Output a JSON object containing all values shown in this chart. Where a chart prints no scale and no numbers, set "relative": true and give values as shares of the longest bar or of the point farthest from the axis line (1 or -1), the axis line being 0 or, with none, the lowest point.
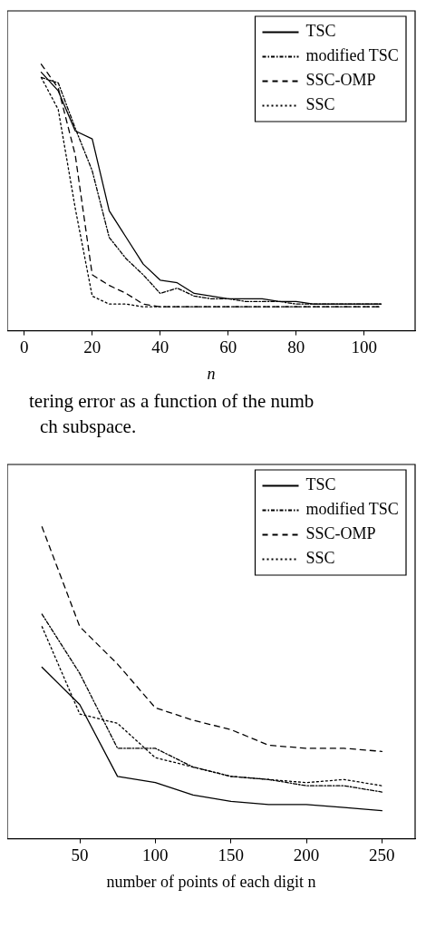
{
  "chart_data": [
    {
      "type": "line",
      "xlabel": "n",
      "x": [
        5,
        10,
        15,
        20,
        25,
        30,
        35,
        40,
        45,
        50,
        55,
        60,
        65,
        70,
        75,
        80,
        85,
        90,
        95,
        100,
        105
      ],
      "xlim": [
        -5,
        115
      ],
      "xticks": [
        0,
        20,
        40,
        60,
        80,
        100
      ],
      "relative": true,
      "legend": "top right",
      "series": [
        {
          "name": "TSC",
          "color": "#000000",
          "line_style": "solid",
          "values": [
            0.97,
            0.9,
            0.75,
            0.72,
            0.45,
            0.35,
            0.25,
            0.19,
            0.18,
            0.14,
            0.13,
            0.12,
            0.12,
            0.12,
            0.11,
            0.11,
            0.1,
            0.1,
            0.1,
            0.1,
            0.1
          ]
        },
        {
          "name": "modified TSC",
          "color": "#000000",
          "line_style": "dashdot",
          "values": [
            0.95,
            0.93,
            0.76,
            0.6,
            0.35,
            0.27,
            0.21,
            0.14,
            0.16,
            0.13,
            0.12,
            0.12,
            0.11,
            0.11,
            0.11,
            0.1,
            0.1,
            0.1,
            0.1,
            0.1,
            0.1
          ]
        },
        {
          "name": "SSC-OMP",
          "color": "#000000",
          "line_style": "dashed",
          "values": [
            1,
            0.91,
            0.66,
            0.21,
            0.17,
            0.14,
            0.1,
            0.09,
            0.09,
            0.09,
            0.09,
            0.09,
            0.09,
            0.09,
            0.09,
            0.09,
            0.09,
            0.09,
            0.09,
            0.09,
            0.09
          ]
        },
        {
          "name": "SSC",
          "color": "#000000",
          "line_style": "dotted",
          "values": [
            0.95,
            0.83,
            0.46,
            0.13,
            0.1,
            0.1,
            0.09,
            0.09,
            0.09,
            0.09,
            0.09,
            0.09,
            0.09,
            0.09,
            0.09,
            0.09,
            0.09,
            0.09,
            0.09,
            0.09,
            0.09
          ]
        }
      ],
      "annotations": [
        "tering error as a function of the numb",
        "ch subspace."
      ]
    },
    {
      "type": "line",
      "xlabel": "number of points of each digit n",
      "x": [
        25,
        50,
        75,
        100,
        125,
        150,
        175,
        200,
        225,
        250
      ],
      "xlim": [
        2,
        272
      ],
      "xticks": [
        50,
        100,
        150,
        200,
        250
      ],
      "relative": true,
      "legend": "top right",
      "series": [
        {
          "name": "TSC",
          "color": "#000000",
          "line_style": "solid",
          "values": [
            0.55,
            0.43,
            0.2,
            0.18,
            0.14,
            0.12,
            0.11,
            0.11,
            0.1,
            0.09
          ]
        },
        {
          "name": "modified TSC",
          "color": "#000000",
          "line_style": "dashdot",
          "values": [
            0.72,
            0.53,
            0.29,
            0.29,
            0.23,
            0.2,
            0.19,
            0.17,
            0.17,
            0.15
          ]
        },
        {
          "name": "SSC-OMP",
          "color": "#000000",
          "line_style": "dashed",
          "values": [
            1,
            0.68,
            0.56,
            0.42,
            0.38,
            0.35,
            0.3,
            0.29,
            0.29,
            0.28
          ]
        },
        {
          "name": "SSC",
          "color": "#000000",
          "line_style": "dotted",
          "values": [
            0.68,
            0.4,
            0.37,
            0.26,
            0.23,
            0.2,
            0.19,
            0.18,
            0.19,
            0.17
          ]
        }
      ]
    }
  ]
}
